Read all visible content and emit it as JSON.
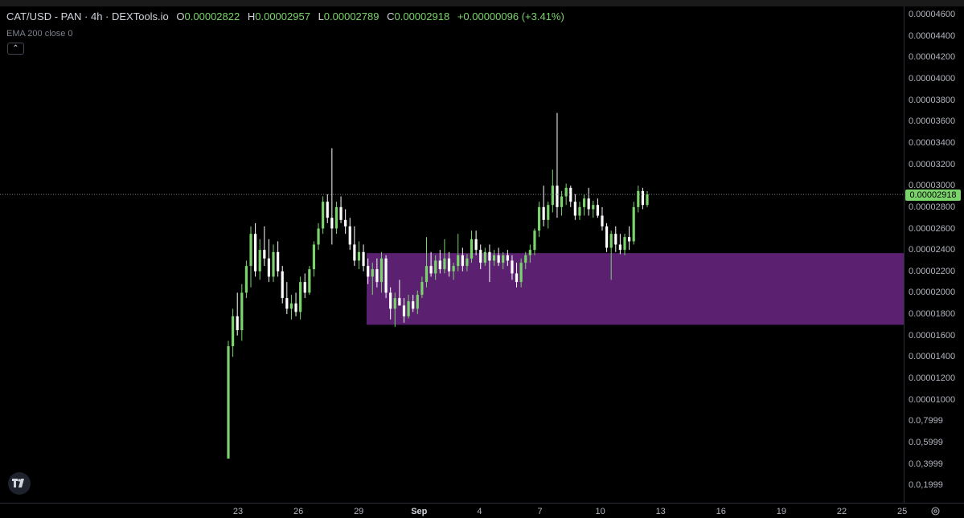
{
  "header": {
    "symbol": "CAT/USD - PAN · 4h · DEXTools.io",
    "open_key": "O",
    "open": "0.00002822",
    "high_key": "H",
    "high": "0.00002957",
    "low_key": "L",
    "low": "0.00002789",
    "close_key": "C",
    "close": "0.00002918",
    "change": "+0.00000096 (+3.41%)"
  },
  "indicator": {
    "label": "EMA 200 close 0"
  },
  "icons": {
    "collapse": "chevron-up-icon",
    "logo": "tradingview-logo-icon",
    "settings": "gear-icon"
  },
  "colors": {
    "up": "#7ad36b",
    "down": "#ffffff",
    "zone": "#5b2170",
    "last_price": "#7ad36b"
  },
  "chart_data": {
    "type": "candlestick",
    "last_price": "0.00002918",
    "zone": {
      "from": 1.7e-05,
      "to": 2.37e-05
    },
    "y_ticks": [
      "0.00004600",
      "0.00004400",
      "0.00004200",
      "0.00004000",
      "0.00003800",
      "0.00003600",
      "0.00003400",
      "0.00003200",
      "0.00003000",
      "0.00002800",
      "0.00002600",
      "0.00002400",
      "0.00002200",
      "0.00002000",
      "0.00001800",
      "0.00001600",
      "0.00001400",
      "0.00001200",
      "0.00001000",
      "0.0,7999",
      "0.0,5999",
      "0.0,3999",
      "0.0,1999"
    ],
    "x_ticks": [
      "23",
      "26",
      "29",
      "Sep",
      "4",
      "7",
      "10",
      "13",
      "16",
      "19",
      "22",
      "25"
    ],
    "x_bold": [
      "Sep"
    ],
    "candles": [
      [
        4.5e-06,
        1.55e-05,
        4.5e-06,
        1.5e-05
      ],
      [
        1.5e-05,
        1.85e-05,
        1.4e-05,
        1.78e-05
      ],
      [
        1.78e-05,
        2e-05,
        1.6e-05,
        1.65e-05
      ],
      [
        1.65e-05,
        2.08e-05,
        1.55e-05,
        2e-05
      ],
      [
        2e-05,
        2.3e-05,
        1.95e-05,
        2.25e-05
      ],
      [
        2.25e-05,
        2.62e-05,
        2.05e-05,
        2.55e-05
      ],
      [
        2.55e-05,
        2.65e-05,
        2.15e-05,
        2.2e-05
      ],
      [
        2.2e-05,
        2.5e-05,
        2.12e-05,
        2.4e-05
      ],
      [
        2.4e-05,
        2.62e-05,
        2.25e-05,
        2.32e-05
      ],
      [
        2.32e-05,
        2.5e-05,
        2.1e-05,
        2.15e-05
      ],
      [
        2.15e-05,
        2.45e-05,
        2.1e-05,
        2.38e-05
      ],
      [
        2.38e-05,
        2.48e-05,
        2.15e-05,
        2.2e-05
      ],
      [
        2.2e-05,
        2.25e-05,
        1.9e-05,
        1.95e-05
      ],
      [
        1.95e-05,
        2.1e-05,
        1.8e-05,
        1.85e-05
      ],
      [
        1.85e-05,
        1.98e-05,
        1.75e-05,
        1.9e-05
      ],
      [
        1.9e-05,
        2e-05,
        1.78e-05,
        1.82e-05
      ],
      [
        1.82e-05,
        2.15e-05,
        1.75e-05,
        2.1e-05
      ],
      [
        2.1e-05,
        2.18e-05,
        1.95e-05,
        2e-05
      ],
      [
        2e-05,
        2.25e-05,
        1.98e-05,
        2.22e-05
      ],
      [
        2.22e-05,
        2.48e-05,
        2.15e-05,
        2.45e-05
      ],
      [
        2.45e-05,
        2.65e-05,
        2.4e-05,
        2.6e-05
      ],
      [
        2.6e-05,
        2.9e-05,
        2.55e-05,
        2.85e-05
      ],
      [
        2.85e-05,
        2.92e-05,
        2.65e-05,
        2.7e-05
      ],
      [
        2.7e-05,
        3.35e-05,
        2.45e-05,
        2.6e-05
      ],
      [
        2.6e-05,
        2.85e-05,
        2.55e-05,
        2.8e-05
      ],
      [
        2.8e-05,
        2.9e-05,
        2.65e-05,
        2.68e-05
      ],
      [
        2.68e-05,
        2.78e-05,
        2.55e-05,
        2.62e-05
      ],
      [
        2.62e-05,
        2.7e-05,
        2.4e-05,
        2.45e-05
      ],
      [
        2.45e-05,
        2.62e-05,
        2.25e-05,
        2.3e-05
      ],
      [
        2.3e-05,
        2.48e-05,
        2.22e-05,
        2.38e-05
      ],
      [
        2.38e-05,
        2.45e-05,
        2.2e-05,
        2.25e-05
      ],
      [
        2.25e-05,
        2.32e-05,
        2.08e-05,
        2.15e-05
      ],
      [
        2.15e-05,
        2.28e-05,
        1.98e-05,
        2.22e-05
      ],
      [
        2.22e-05,
        2.32e-05,
        2.05e-05,
        2.1e-05
      ],
      [
        2.1e-05,
        2.38e-05,
        2e-05,
        2.32e-05
      ],
      [
        2.32e-05,
        2.35e-05,
        1.95e-05,
        2e-05
      ],
      [
        2e-05,
        2.05e-05,
        1.75e-05,
        1.85e-05
      ],
      [
        1.85e-05,
        2e-05,
        1.68e-05,
        1.95e-05
      ],
      [
        1.95e-05,
        2.12e-05,
        1.88e-05,
        1.88e-05
      ],
      [
        1.88e-05,
        1.95e-05,
        1.72e-05,
        1.78e-05
      ],
      [
        1.78e-05,
        1.98e-05,
        1.76e-05,
        1.92e-05
      ],
      [
        1.92e-05,
        1.98e-05,
        1.82e-05,
        1.85e-05
      ],
      [
        1.85e-05,
        2.02e-05,
        1.8e-05,
        1.98e-05
      ],
      [
        1.98e-05,
        2.15e-05,
        1.95e-05,
        2.1e-05
      ],
      [
        2.1e-05,
        2.52e-05,
        2.05e-05,
        2.25e-05
      ],
      [
        2.25e-05,
        2.38e-05,
        2.15e-05,
        2.18e-05
      ],
      [
        2.18e-05,
        2.35e-05,
        2.12e-05,
        2.3e-05
      ],
      [
        2.3e-05,
        2.4e-05,
        2.18e-05,
        2.22e-05
      ],
      [
        2.22e-05,
        2.5e-05,
        2.18e-05,
        2.32e-05
      ],
      [
        2.32e-05,
        2.38e-05,
        2.15e-05,
        2.2e-05
      ],
      [
        2.2e-05,
        2.28e-05,
        2.12e-05,
        2.25e-05
      ],
      [
        2.25e-05,
        2.55e-05,
        2.2e-05,
        2.35e-05
      ],
      [
        2.35e-05,
        2.42e-05,
        2.2e-05,
        2.25e-05
      ],
      [
        2.25e-05,
        2.36e-05,
        2.2e-05,
        2.32e-05
      ],
      [
        2.32e-05,
        2.58e-05,
        2.28e-05,
        2.5e-05
      ],
      [
        2.5e-05,
        2.58e-05,
        2.35e-05,
        2.4e-05
      ],
      [
        2.4e-05,
        2.45e-05,
        2.22e-05,
        2.28e-05
      ],
      [
        2.28e-05,
        2.42e-05,
        2.25e-05,
        2.38e-05
      ],
      [
        2.38e-05,
        2.45e-05,
        2.1e-05,
        2.3e-05
      ],
      [
        2.3e-05,
        2.4e-05,
        2.25e-05,
        2.35e-05
      ],
      [
        2.35e-05,
        2.42e-05,
        2.25e-05,
        2.28e-05
      ],
      [
        2.28e-05,
        2.38e-05,
        2.22e-05,
        2.35e-05
      ],
      [
        2.35e-05,
        2.4e-05,
        2.25e-05,
        2.3e-05
      ],
      [
        2.3e-05,
        2.35e-05,
        2.12e-05,
        2.18e-05
      ],
      [
        2.18e-05,
        2.28e-05,
        2.05e-05,
        2.1e-05
      ],
      [
        2.1e-05,
        2.32e-05,
        2.05e-05,
        2.28e-05
      ],
      [
        2.28e-05,
        2.38e-05,
        2.22e-05,
        2.35e-05
      ],
      [
        2.35e-05,
        2.45e-05,
        2.28e-05,
        2.4e-05
      ],
      [
        2.4e-05,
        2.6e-05,
        2.35e-05,
        2.58e-05
      ],
      [
        2.58e-05,
        2.85e-05,
        2.52e-05,
        2.8e-05
      ],
      [
        2.8e-05,
        3e-05,
        2.62e-05,
        2.68e-05
      ],
      [
        2.68e-05,
        2.85e-05,
        2.6e-05,
        2.82e-05
      ],
      [
        2.82e-05,
        3.15e-05,
        2.75e-05,
        3e-05
      ],
      [
        3e-05,
        3.68e-05,
        2.7e-05,
        2.8e-05
      ],
      [
        2.8e-05,
        2.95e-05,
        2.72e-05,
        2.9e-05
      ],
      [
        2.9e-05,
        3.02e-05,
        2.82e-05,
        2.98e-05
      ],
      [
        2.98e-05,
        3e-05,
        2.8e-05,
        2.85e-05
      ],
      [
        2.85e-05,
        2.92e-05,
        2.68e-05,
        2.72e-05
      ],
      [
        2.72e-05,
        2.85e-05,
        2.68e-05,
        2.8e-05
      ],
      [
        2.8e-05,
        2.92e-05,
        2.72e-05,
        2.88e-05
      ],
      [
        2.88e-05,
        2.98e-05,
        2.72e-05,
        2.78e-05
      ],
      [
        2.78e-05,
        2.86e-05,
        2.7e-05,
        2.82e-05
      ],
      [
        2.82e-05,
        2.88e-05,
        2.7e-05,
        2.72e-05
      ],
      [
        2.72e-05,
        2.8e-05,
        2.58e-05,
        2.62e-05
      ],
      [
        2.62e-05,
        2.65e-05,
        2.38e-05,
        2.42e-05
      ],
      [
        2.42e-05,
        2.58e-05,
        2.12e-05,
        2.55e-05
      ],
      [
        2.55e-05,
        2.62e-05,
        2.38e-05,
        2.45e-05
      ],
      [
        2.45e-05,
        2.55e-05,
        2.36e-05,
        2.4e-05
      ],
      [
        2.4e-05,
        2.55e-05,
        2.35e-05,
        2.52e-05
      ],
      [
        2.52e-05,
        2.62e-05,
        2.4e-05,
        2.48e-05
      ],
      [
        2.48e-05,
        2.85e-05,
        2.45e-05,
        2.8e-05
      ],
      [
        2.8e-05,
        3e-05,
        2.75e-05,
        2.95e-05
      ],
      [
        2.95e-05,
        2.98e-05,
        2.78e-05,
        2.82e-05
      ],
      [
        2.82e-05,
        2.95e-05,
        2.8e-05,
        2.92e-05
      ]
    ]
  }
}
